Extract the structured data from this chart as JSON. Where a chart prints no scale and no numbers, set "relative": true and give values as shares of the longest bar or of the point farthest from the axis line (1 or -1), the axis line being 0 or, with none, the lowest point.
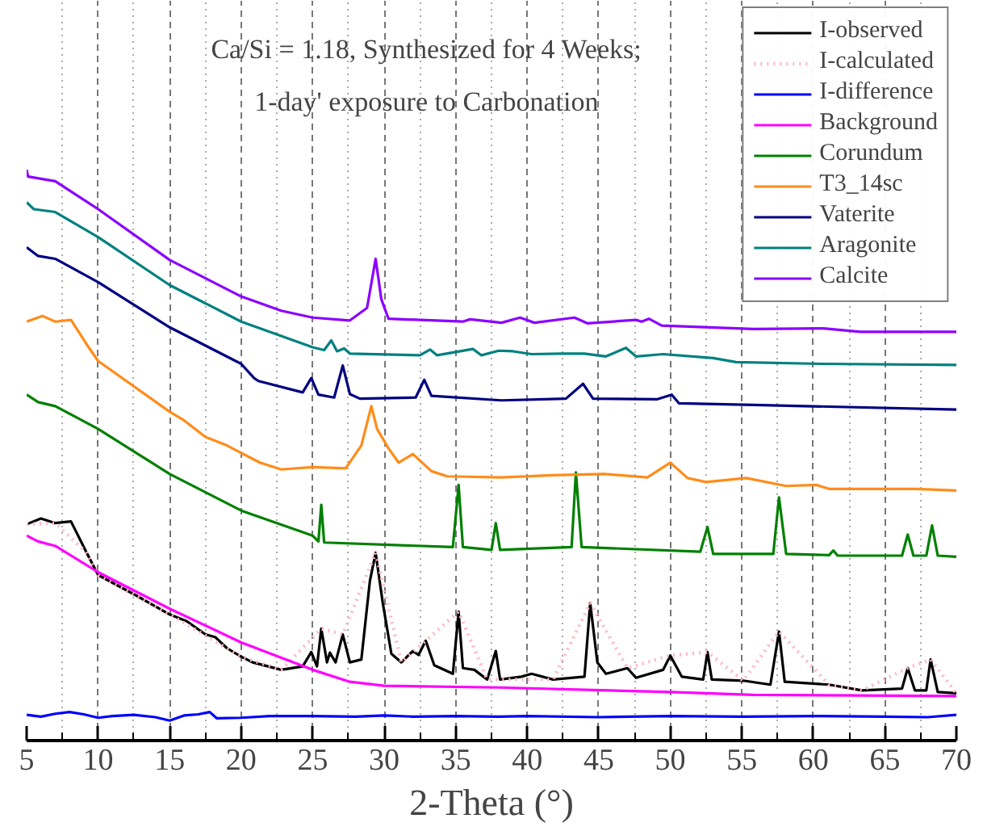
{
  "chart_data": {
    "type": "line",
    "relative": true,
    "title": "Ca/Si = 1.18, Synthesized for 4 Weeks;\n1-day' exposure to Carbonation",
    "xlabel": "2-Theta (°)",
    "xlim": [
      5,
      70
    ],
    "xticks": [
      5,
      10,
      15,
      20,
      25,
      30,
      35,
      40,
      45,
      50,
      55,
      60,
      65,
      70
    ],
    "grid": "x",
    "legend": "top right",
    "series": [
      {
        "name": "I-observed",
        "color": "#000000",
        "x": [
          5,
          6,
          7,
          8.1,
          9.2,
          10,
          12.6,
          15,
          16.2,
          17.5,
          18.2,
          19,
          20,
          20.8,
          22.8,
          24.3,
          24.9,
          25.3,
          25.6,
          26,
          26.2,
          26.6,
          27.1,
          27.6,
          28.4,
          29,
          29.4,
          29.9,
          30.5,
          31.2,
          32,
          32.4,
          32.9,
          33.5,
          34.8,
          35.2,
          35.5,
          36.3,
          37.2,
          37.8,
          38.1,
          39.6,
          40.3,
          41.8,
          44,
          44.4,
          44.9,
          45.5,
          47,
          47.6,
          49.5,
          50,
          50.8,
          52.3,
          52.6,
          52.9,
          55.1,
          57,
          57.6,
          58,
          61.1,
          63.4,
          66.2,
          66.6,
          67.1,
          67.9,
          68.2,
          68.7,
          70
        ],
        "values": [
          0.379,
          0.389,
          0.381,
          0.384,
          0.329,
          0.29,
          0.255,
          0.221,
          0.209,
          0.186,
          0.181,
          0.162,
          0.147,
          0.137,
          0.124,
          0.13,
          0.155,
          0.13,
          0.196,
          0.137,
          0.154,
          0.137,
          0.186,
          0.137,
          0.142,
          0.28,
          0.329,
          0.241,
          0.152,
          0.137,
          0.157,
          0.15,
          0.175,
          0.132,
          0.117,
          0.226,
          0.127,
          0.124,
          0.107,
          0.157,
          0.107,
          0.112,
          0.117,
          0.107,
          0.112,
          0.241,
          0.137,
          0.117,
          0.127,
          0.11,
          0.124,
          0.149,
          0.112,
          0.107,
          0.155,
          0.107,
          0.105,
          0.098,
          0.191,
          0.103,
          0.098,
          0.088,
          0.091,
          0.127,
          0.088,
          0.088,
          0.142,
          0.085,
          0.083
        ]
      },
      {
        "name": "I-calculated",
        "color": "#ffb6c1",
        "line_style": "dotted",
        "x": [
          5,
          7,
          9.2,
          10,
          15,
          20,
          22.8,
          25.6,
          27.1,
          29.4,
          31.2,
          35.2,
          37.2,
          41.8,
          44.4,
          47,
          50,
          52.6,
          55.1,
          57.6,
          61.1,
          63.4,
          66.6,
          68.2,
          70
        ],
        "values": [
          0.379,
          0.381,
          0.329,
          0.29,
          0.221,
          0.147,
          0.124,
          0.196,
          0.186,
          0.329,
          0.137,
          0.226,
          0.107,
          0.107,
          0.241,
          0.127,
          0.149,
          0.155,
          0.105,
          0.191,
          0.098,
          0.088,
          0.127,
          0.142,
          0.083
        ]
      },
      {
        "name": "I-difference",
        "color": "#0000ff",
        "x": [
          5,
          6,
          7,
          8,
          9,
          10,
          11,
          12.5,
          14,
          15,
          16,
          17,
          17.8,
          18.3,
          20,
          22,
          25,
          28,
          30,
          32,
          35,
          38,
          40,
          45,
          50,
          55,
          60,
          65,
          68,
          70
        ],
        "values": [
          0.045,
          0.042,
          0.047,
          0.05,
          0.046,
          0.04,
          0.043,
          0.045,
          0.041,
          0.035,
          0.044,
          0.046,
          0.05,
          0.039,
          0.04,
          0.043,
          0.043,
          0.042,
          0.044,
          0.042,
          0.043,
          0.042,
          0.043,
          0.041,
          0.043,
          0.042,
          0.043,
          0.042,
          0.041,
          0.045
        ]
      },
      {
        "name": "Background",
        "color": "#ff00ff",
        "x": [
          5,
          5.8,
          7,
          10,
          15,
          20,
          25,
          27.6,
          30,
          38,
          50,
          55.8,
          70
        ],
        "values": [
          0.359,
          0.349,
          0.341,
          0.295,
          0.231,
          0.172,
          0.124,
          0.103,
          0.096,
          0.093,
          0.085,
          0.08,
          0.078
        ]
      },
      {
        "name": "Corundum",
        "color": "#008000",
        "x": [
          5,
          5.8,
          7,
          10,
          15,
          20,
          25,
          25.4,
          25.6,
          25.8,
          34.8,
          35.2,
          35.5,
          37.5,
          37.8,
          38.1,
          43.1,
          43.4,
          43.8,
          52.1,
          52.6,
          53,
          57.2,
          57.6,
          58.1,
          61.1,
          61.4,
          61.7,
          66.2,
          66.6,
          67,
          67.9,
          68.3,
          68.7,
          70
        ],
        "values": [
          0.606,
          0.593,
          0.586,
          0.546,
          0.467,
          0.403,
          0.359,
          0.349,
          0.413,
          0.347,
          0.339,
          0.448,
          0.339,
          0.334,
          0.381,
          0.334,
          0.339,
          0.47,
          0.339,
          0.331,
          0.374,
          0.327,
          0.327,
          0.426,
          0.327,
          0.325,
          0.333,
          0.324,
          0.324,
          0.361,
          0.324,
          0.324,
          0.377,
          0.324,
          0.322
        ]
      },
      {
        "name": "T3_14sc",
        "color": "#ff8c1a",
        "x": [
          5,
          6.1,
          7,
          8.1,
          9.2,
          10,
          15,
          16,
          17.5,
          19,
          21.3,
          22.8,
          25,
          27.3,
          28.4,
          29.1,
          29.5,
          30.3,
          31,
          32,
          33.3,
          34.4,
          38.2,
          41.8,
          45.4,
          48.4,
          50,
          51.2,
          52.5,
          55.3,
          58.1,
          60.2,
          61.1,
          67.2,
          70
        ],
        "values": [
          0.734,
          0.744,
          0.734,
          0.737,
          0.694,
          0.665,
          0.576,
          0.561,
          0.532,
          0.517,
          0.487,
          0.475,
          0.479,
          0.477,
          0.517,
          0.586,
          0.546,
          0.512,
          0.487,
          0.502,
          0.472,
          0.463,
          0.461,
          0.465,
          0.467,
          0.461,
          0.487,
          0.46,
          0.453,
          0.46,
          0.446,
          0.448,
          0.441,
          0.441,
          0.438
        ]
      },
      {
        "name": "Vaterite",
        "color": "#000080",
        "x": [
          5,
          5.8,
          7,
          10,
          15,
          20,
          20.9,
          21.2,
          24.3,
          24.9,
          25.4,
          26.5,
          27.1,
          27.6,
          28.3,
          32.2,
          32.8,
          33.3,
          38.2,
          42.7,
          43.9,
          44.6,
          49.1,
          50.1,
          50.6,
          55.8,
          70
        ],
        "values": [
          0.864,
          0.849,
          0.844,
          0.803,
          0.724,
          0.66,
          0.635,
          0.63,
          0.61,
          0.635,
          0.606,
          0.601,
          0.657,
          0.607,
          0.599,
          0.601,
          0.632,
          0.604,
          0.596,
          0.599,
          0.625,
          0.599,
          0.598,
          0.606,
          0.591,
          0.588,
          0.58
        ]
      },
      {
        "name": "Aragonite",
        "color": "#008080",
        "x": [
          5,
          5.5,
          7,
          10,
          15,
          20,
          25,
          25.8,
          26.3,
          26.7,
          27.2,
          27.6,
          32.5,
          33.2,
          33.7,
          36.2,
          36.8,
          38,
          39,
          40.3,
          42.4,
          44,
          45.5,
          46.9,
          47.6,
          49.5,
          53,
          54.6,
          60.6,
          70
        ],
        "values": [
          0.943,
          0.931,
          0.926,
          0.882,
          0.798,
          0.734,
          0.689,
          0.684,
          0.701,
          0.682,
          0.687,
          0.678,
          0.675,
          0.685,
          0.675,
          0.686,
          0.675,
          0.683,
          0.682,
          0.677,
          0.678,
          0.678,
          0.673,
          0.688,
          0.673,
          0.677,
          0.67,
          0.663,
          0.66,
          0.658
        ]
      },
      {
        "name": "Calcite",
        "color": "#8b00ff",
        "x": [
          5,
          5.1,
          7,
          10,
          15,
          20,
          22.8,
          25,
          27.6,
          28.8,
          29.4,
          29.8,
          30.3,
          35.5,
          36,
          38.2,
          39.5,
          40.5,
          43.3,
          44.2,
          47.6,
          48,
          48.5,
          49.4,
          55.8,
          60.7,
          63.3,
          70
        ],
        "values": [
          1.0,
          0.988,
          0.98,
          0.931,
          0.842,
          0.778,
          0.753,
          0.741,
          0.736,
          0.758,
          0.844,
          0.773,
          0.739,
          0.734,
          0.738,
          0.732,
          0.741,
          0.732,
          0.741,
          0.731,
          0.737,
          0.734,
          0.739,
          0.727,
          0.721,
          0.722,
          0.716,
          0.716
        ]
      }
    ]
  }
}
